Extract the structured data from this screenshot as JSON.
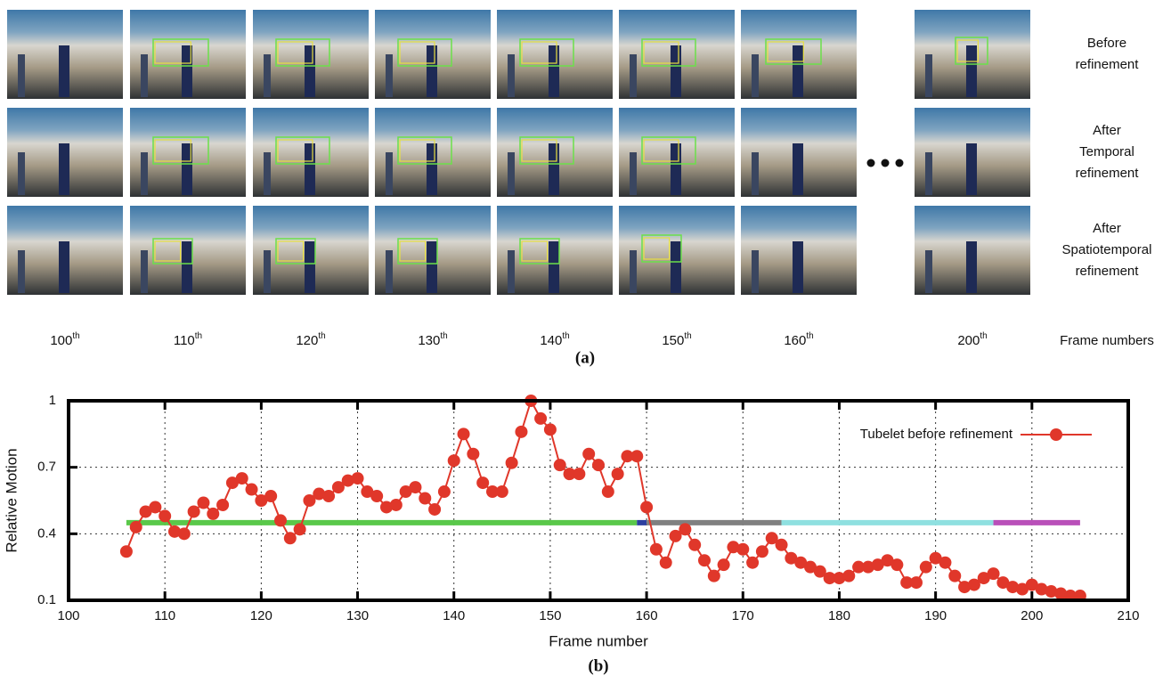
{
  "figure_a": {
    "row_labels": [
      [
        "Before",
        "refinement"
      ],
      [
        "After",
        "Temporal",
        "refinement"
      ],
      [
        "After",
        "Spatiotemporal",
        "refinement"
      ]
    ],
    "frame_labels": [
      {
        "number": "100",
        "suffix": "th"
      },
      {
        "number": "110",
        "suffix": "th"
      },
      {
        "number": "120",
        "suffix": "th"
      },
      {
        "number": "130",
        "suffix": "th"
      },
      {
        "number": "140",
        "suffix": "th"
      },
      {
        "number": "150",
        "suffix": "th"
      },
      {
        "number": "160",
        "suffix": "th"
      },
      {
        "number": "200",
        "suffix": "th"
      }
    ],
    "axis_label": "Frame numbers",
    "caption": "(a)"
  },
  "chart_data": {
    "type": "line",
    "xlabel": "Frame number",
    "ylabel": "Relative Motion",
    "caption": "(b)",
    "xlim": [
      100,
      210
    ],
    "ylim": [
      0.1,
      1
    ],
    "xticks": [
      100,
      110,
      120,
      130,
      140,
      150,
      160,
      170,
      180,
      190,
      200,
      210
    ],
    "yticks": [
      0.1,
      0.4,
      0.7,
      1
    ],
    "grid": true,
    "legend": "upper right",
    "x": [
      106,
      107,
      108,
      109,
      110,
      111,
      112,
      113,
      114,
      115,
      116,
      117,
      118,
      119,
      120,
      121,
      122,
      123,
      124,
      125,
      126,
      127,
      128,
      129,
      130,
      131,
      132,
      133,
      134,
      135,
      136,
      137,
      138,
      139,
      140,
      141,
      142,
      143,
      144,
      145,
      146,
      147,
      148,
      149,
      150,
      151,
      152,
      153,
      154,
      155,
      156,
      157,
      158,
      159,
      160,
      161,
      162,
      163,
      164,
      165,
      166,
      167,
      168,
      169,
      170,
      171,
      172,
      173,
      174,
      175,
      176,
      177,
      178,
      179,
      180,
      181,
      182,
      183,
      184,
      185,
      186,
      187,
      188,
      189,
      190,
      191,
      192,
      193,
      194,
      195,
      196,
      197,
      198,
      199,
      200,
      201,
      202,
      203,
      204,
      205
    ],
    "series": [
      {
        "name": "Tubelet before refinement",
        "color": "#e0372a",
        "values": [
          0.32,
          0.43,
          0.5,
          0.52,
          0.48,
          0.41,
          0.4,
          0.5,
          0.54,
          0.49,
          0.53,
          0.63,
          0.65,
          0.6,
          0.55,
          0.57,
          0.46,
          0.38,
          0.42,
          0.55,
          0.58,
          0.57,
          0.61,
          0.64,
          0.65,
          0.59,
          0.57,
          0.52,
          0.53,
          0.59,
          0.61,
          0.56,
          0.51,
          0.59,
          0.73,
          0.85,
          0.76,
          0.63,
          0.59,
          0.59,
          0.72,
          0.86,
          1,
          0.92,
          0.87,
          0.71,
          0.67,
          0.67,
          0.76,
          0.71,
          0.59,
          0.67,
          0.75,
          0.75,
          0.52,
          0.33,
          0.27,
          0.39,
          0.42,
          0.35,
          0.28,
          0.21,
          0.26,
          0.34,
          0.33,
          0.27,
          0.32,
          0.38,
          0.35,
          0.29,
          0.27,
          0.25,
          0.23,
          0.2,
          0.2,
          0.21,
          0.25,
          0.25,
          0.26,
          0.28,
          0.26,
          0.18,
          0.18,
          0.25,
          0.29,
          0.27,
          0.21,
          0.16,
          0.17,
          0.2,
          0.22,
          0.18,
          0.16,
          0.15,
          0.17,
          0.15,
          0.14,
          0.13,
          0.12,
          0.12
        ]
      }
    ],
    "segments": [
      {
        "color": "#5ac84a",
        "x": [
          106,
          159
        ],
        "y": 0.45
      },
      {
        "color": "#2c3fa0",
        "x": [
          159,
          160
        ],
        "y": 0.45
      },
      {
        "color": "#808080",
        "x": [
          160,
          174
        ],
        "y": 0.45
      },
      {
        "color": "#8fe0e0",
        "x": [
          174,
          196
        ],
        "y": 0.45
      },
      {
        "color": "#b950b9",
        "x": [
          196,
          205
        ],
        "y": 0.45
      }
    ]
  }
}
